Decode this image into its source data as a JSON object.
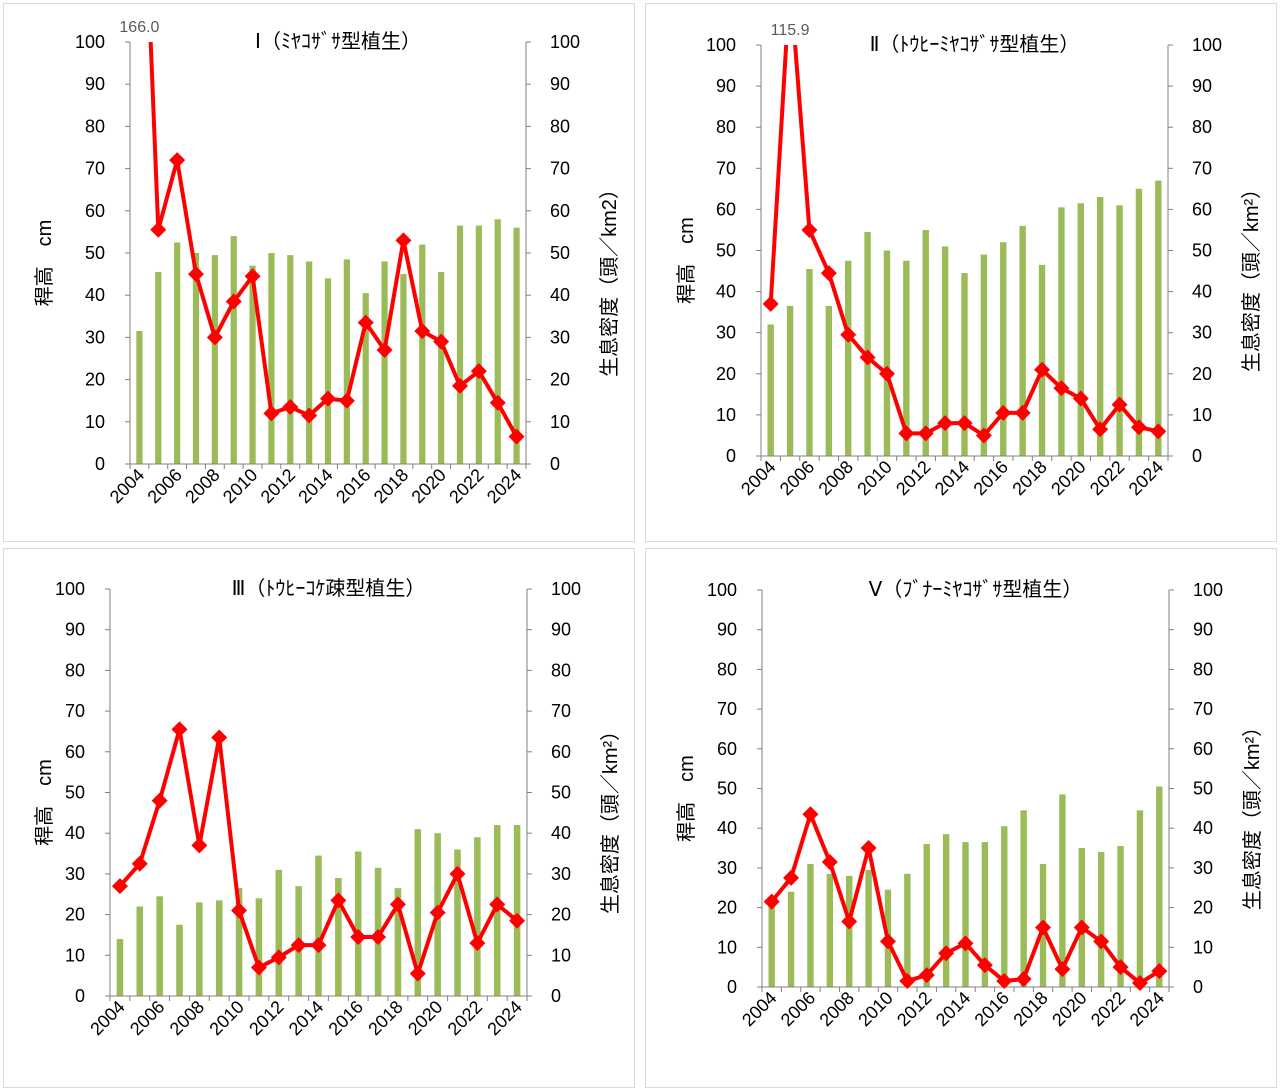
{
  "colors": {
    "bar": "#9BBB59",
    "line": "#FF0000",
    "axis": "#808080",
    "panel_border": "#D9D9D9",
    "text": "#000000",
    "label_text": "#595959"
  },
  "chart_data": [
    {
      "type": "bar+line",
      "title": "Ⅰ（ﾐﾔｺｻﾞｻ型植生）",
      "ylabel_left": "稈高　cm",
      "ylabel_right": "生息密度（頭／km2）",
      "ylim_left": [
        0,
        100
      ],
      "ylim_right": [
        0,
        100
      ],
      "yticks": [
        0,
        10,
        20,
        30,
        40,
        50,
        60,
        70,
        80,
        90,
        100
      ],
      "years": [
        2004,
        2005,
        2006,
        2007,
        2008,
        2009,
        2010,
        2011,
        2012,
        2013,
        2014,
        2015,
        2016,
        2017,
        2018,
        2019,
        2020,
        2021,
        2022,
        2023,
        2024
      ],
      "x_tick_labels": [
        "2004",
        "2006",
        "2008",
        "2010",
        "2012",
        "2014",
        "2016",
        "2018",
        "2020",
        "2022",
        "2024"
      ],
      "bars": {
        "name": "生息密度",
        "axis": "right",
        "values": [
          31.5,
          45.5,
          52.5,
          50,
          49.5,
          54,
          47,
          50,
          49.5,
          48,
          44,
          48.5,
          40.5,
          48,
          45,
          52,
          45.5,
          56.5,
          56.5,
          58,
          56
        ]
      },
      "line": {
        "name": "稈高",
        "axis": "left",
        "values": [
          166.0,
          55.5,
          72,
          45,
          30,
          38.5,
          44.5,
          12,
          13.5,
          11.5,
          15.5,
          15,
          33.5,
          27,
          53,
          31.5,
          29,
          18.5,
          22,
          14.5,
          6.5
        ]
      },
      "annotation": {
        "text": "166.0",
        "index": 0
      }
    },
    {
      "type": "bar+line",
      "title": "Ⅱ（ﾄｳﾋｰﾐﾔｺｻﾞｻ型植生）",
      "ylabel_left": "稈高　cm",
      "ylabel_right": "生息密度（頭／km²）",
      "ylim_left": [
        0,
        100
      ],
      "ylim_right": [
        0,
        100
      ],
      "yticks": [
        0,
        10,
        20,
        30,
        40,
        50,
        60,
        70,
        80,
        90,
        100
      ],
      "years": [
        2004,
        2005,
        2006,
        2007,
        2008,
        2009,
        2010,
        2011,
        2012,
        2013,
        2014,
        2015,
        2016,
        2017,
        2018,
        2019,
        2020,
        2021,
        2022,
        2023,
        2024
      ],
      "x_tick_labels": [
        "2004",
        "2006",
        "2008",
        "2010",
        "2012",
        "2014",
        "2016",
        "2018",
        "2020",
        "2022",
        "2024"
      ],
      "bars": {
        "name": "生息密度",
        "axis": "right",
        "values": [
          32,
          36.5,
          45.5,
          36.5,
          47.5,
          54.5,
          50,
          47.5,
          55,
          51,
          44.5,
          49,
          52,
          56,
          46.5,
          60.5,
          61.5,
          63,
          61,
          65,
          67
        ]
      },
      "line": {
        "name": "稈高",
        "axis": "left",
        "values": [
          37,
          115.9,
          55,
          44.5,
          29.5,
          24,
          20,
          5.5,
          5.5,
          8,
          8,
          5,
          10.5,
          10.5,
          21,
          16.5,
          14,
          6.5,
          12.5,
          7,
          6
        ]
      },
      "annotation": {
        "text": "115.9",
        "index": 1
      }
    },
    {
      "type": "bar+line",
      "title": "Ⅲ（ﾄｳﾋｰｺｹ疎型植生）",
      "ylabel_left": "稈高　cm",
      "ylabel_right": "生息密度（頭／km²）",
      "ylim_left": [
        0,
        100
      ],
      "ylim_right": [
        0,
        100
      ],
      "yticks": [
        0,
        10,
        20,
        30,
        40,
        50,
        60,
        70,
        80,
        90,
        100
      ],
      "years": [
        2004,
        2005,
        2006,
        2007,
        2008,
        2009,
        2010,
        2011,
        2012,
        2013,
        2014,
        2015,
        2016,
        2017,
        2018,
        2019,
        2020,
        2021,
        2022,
        2023,
        2024
      ],
      "x_tick_labels": [
        "2004",
        "2006",
        "2008",
        "2010",
        "2012",
        "2014",
        "2016",
        "2018",
        "2020",
        "2022",
        "2024"
      ],
      "bars": {
        "name": "生息密度",
        "axis": "right",
        "values": [
          14,
          22,
          24.5,
          17.5,
          23,
          23.5,
          26.5,
          24,
          31,
          27,
          34.5,
          29,
          35.5,
          31.5,
          26.5,
          41,
          40,
          36,
          39,
          42,
          42
        ]
      },
      "line": {
        "name": "稈高",
        "axis": "left",
        "values": [
          27,
          32.5,
          48,
          65.5,
          37,
          63.5,
          21,
          7,
          9.5,
          12.5,
          12.5,
          23.5,
          14.5,
          14.5,
          22.5,
          5.5,
          20.5,
          30,
          13,
          22.5,
          18.5
        ]
      }
    },
    {
      "type": "bar+line",
      "title": "Ⅴ（ﾌﾞﾅｰﾐﾔｺｻﾞｻ型植生）",
      "ylabel_left": "稈高　cm",
      "ylabel_right": "生息密度（頭／km²）",
      "ylim_left": [
        0,
        100
      ],
      "ylim_right": [
        0,
        100
      ],
      "yticks": [
        0,
        10,
        20,
        30,
        40,
        50,
        60,
        70,
        80,
        90,
        100
      ],
      "years": [
        2004,
        2005,
        2006,
        2007,
        2008,
        2009,
        2010,
        2011,
        2012,
        2013,
        2014,
        2015,
        2016,
        2017,
        2018,
        2019,
        2020,
        2021,
        2022,
        2023,
        2024
      ],
      "x_tick_labels": [
        "2004",
        "2006",
        "2008",
        "2010",
        "2012",
        "2014",
        "2016",
        "2018",
        "2020",
        "2022",
        "2024"
      ],
      "bars": {
        "name": "生息密度",
        "axis": "right",
        "values": [
          21.5,
          24,
          31,
          28.5,
          28,
          29.5,
          24.5,
          28.5,
          36,
          38.5,
          36.5,
          36.5,
          40.5,
          44.5,
          31,
          48.5,
          35,
          34,
          35.5,
          44.5,
          50.5
        ]
      },
      "line": {
        "name": "稈高",
        "axis": "left",
        "values": [
          21.5,
          27.5,
          43.5,
          31.5,
          16.5,
          35,
          11.5,
          1.5,
          3,
          8.5,
          11,
          5.5,
          1.5,
          2,
          15,
          4.5,
          15,
          11.5,
          5,
          1,
          4
        ]
      }
    }
  ]
}
